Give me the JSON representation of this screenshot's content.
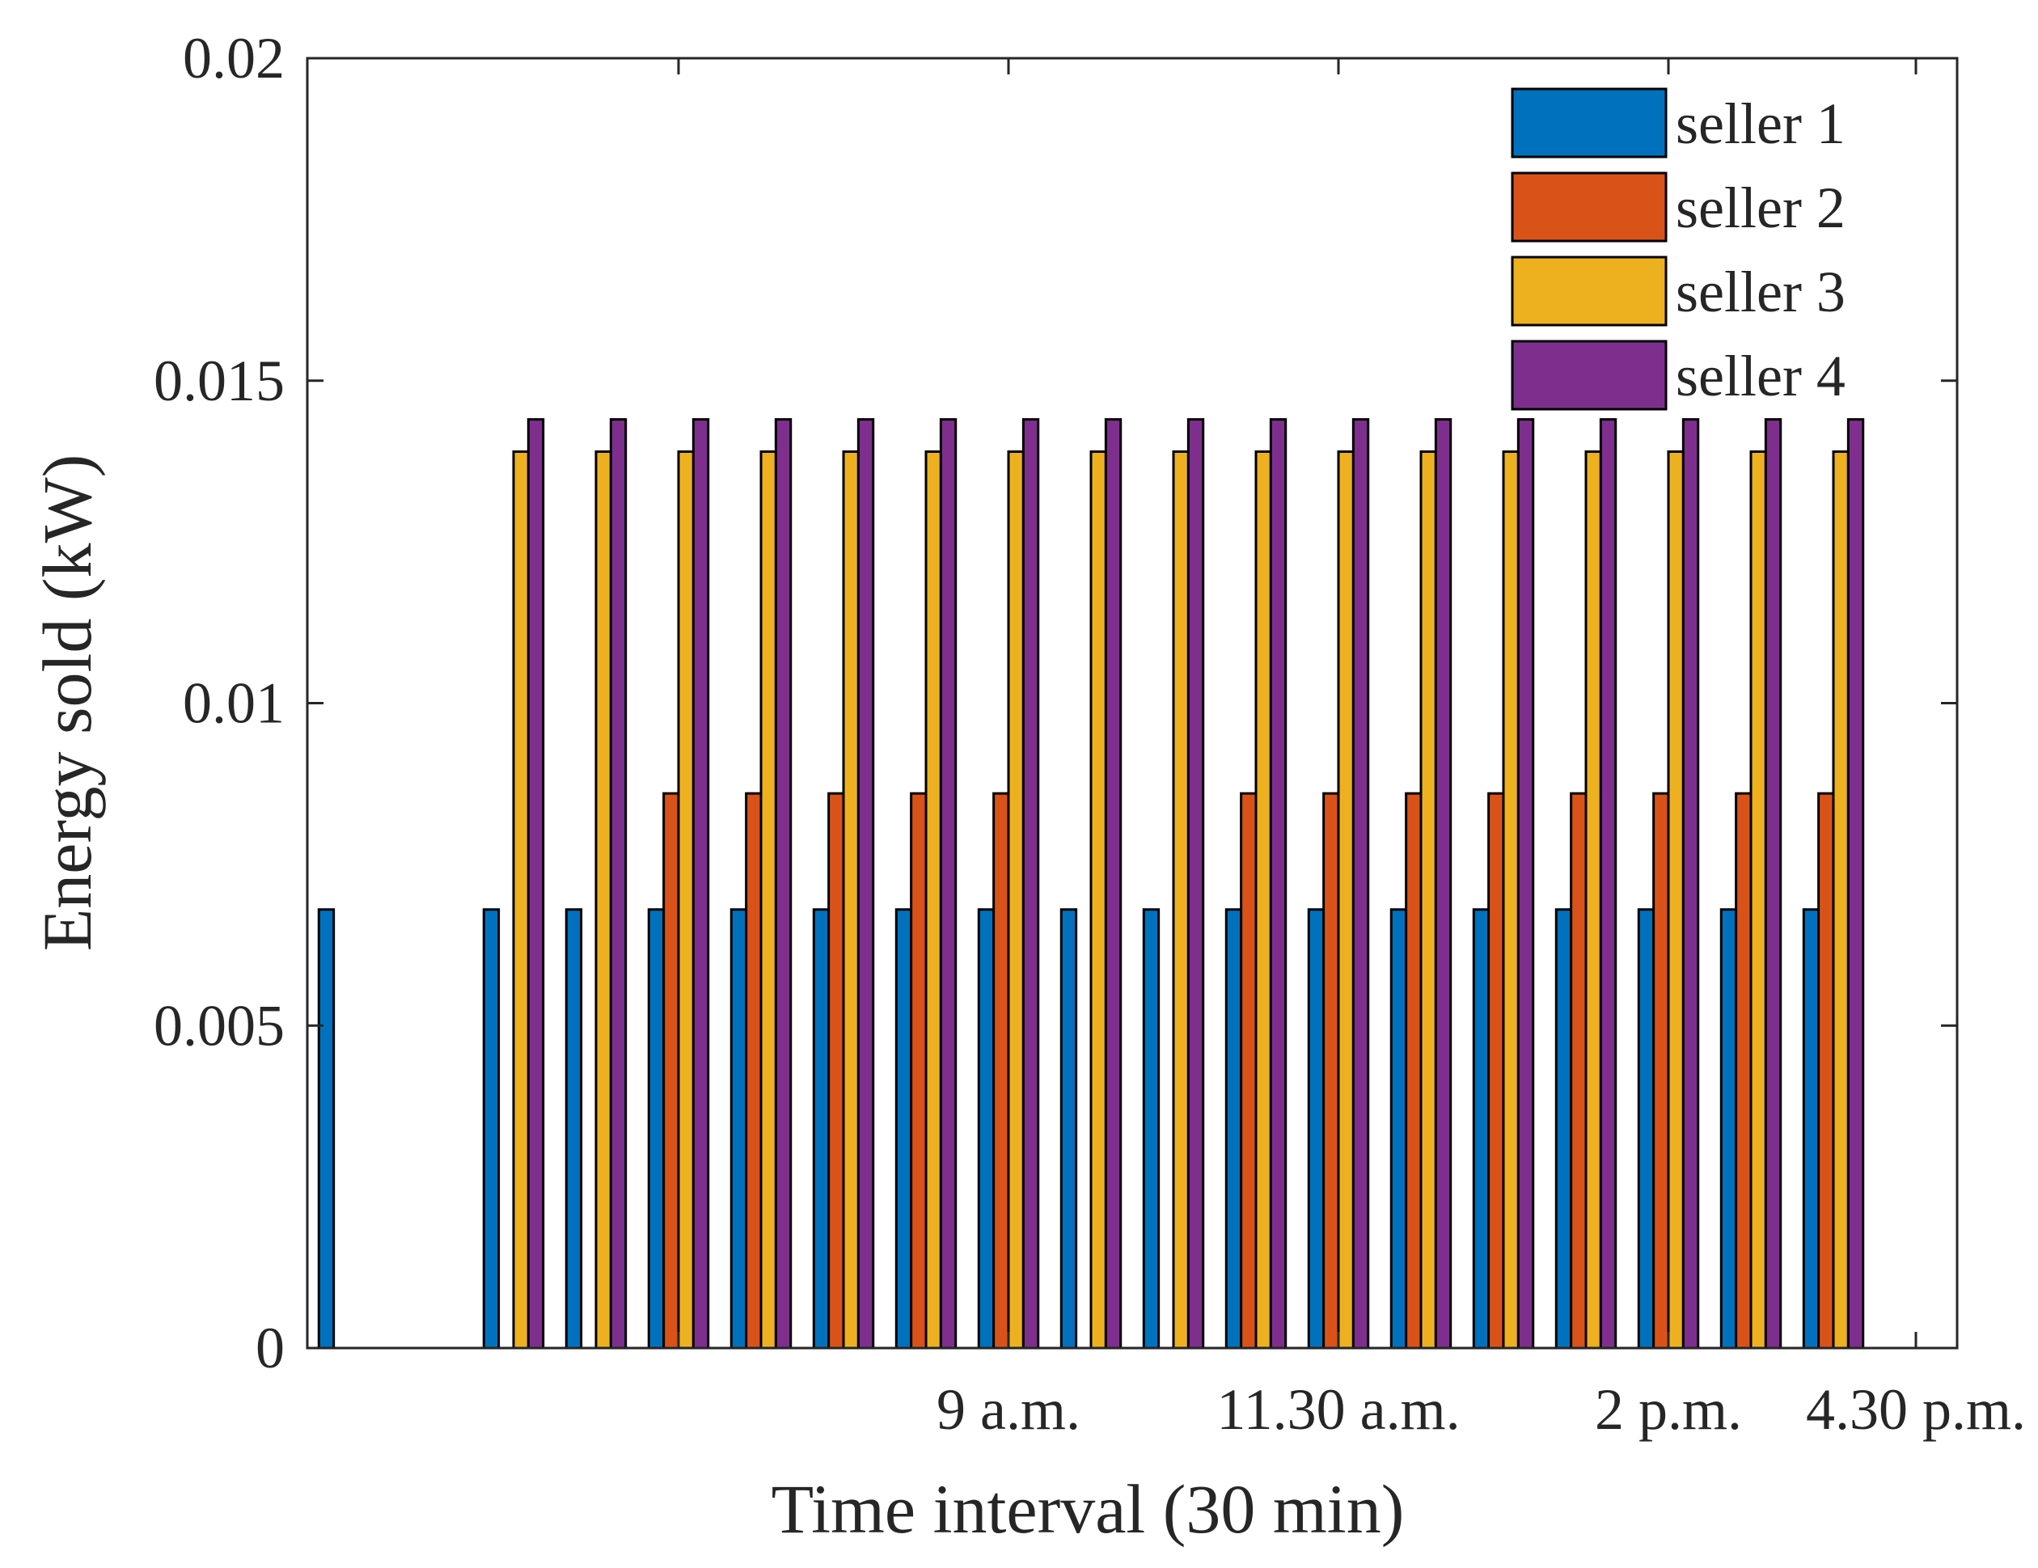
{
  "chart_data": {
    "type": "bar",
    "title": "",
    "xlabel": "Time interval (30 min)",
    "ylabel": "Energy sold (kW)",
    "ylim": [
      0,
      0.02
    ],
    "yticks": [
      0,
      0.005,
      0.01,
      0.015,
      0.02
    ],
    "ytick_labels": [
      "0",
      "0.005",
      "0.01",
      "0.015",
      "0.02"
    ],
    "xlim": [
      0.5,
      20.5
    ],
    "xticks": [
      5,
      9,
      13,
      17,
      20
    ],
    "xtick_labels": [
      "",
      "9 a.m.",
      "11.30 a.m.",
      "2 p.m.",
      "4.30 p.m."
    ],
    "categories": [
      1,
      2,
      3,
      4,
      5,
      6,
      7,
      8,
      9,
      10,
      11,
      12,
      13,
      14,
      15,
      16,
      17,
      18,
      19,
      20
    ],
    "series": [
      {
        "name": "seller 1",
        "color": "#0072BD",
        "values": [
          0.0068,
          0,
          0.0068,
          0.0068,
          0.0068,
          0.0068,
          0.0068,
          0.0068,
          0.0068,
          0.0068,
          0.0068,
          0.0068,
          0.0068,
          0.0068,
          0.0068,
          0.0068,
          0.0068,
          0.0068,
          0.0068,
          0
        ]
      },
      {
        "name": "seller 2",
        "color": "#D95319",
        "values": [
          0,
          0,
          0,
          0,
          0.0086,
          0.0086,
          0.0086,
          0.0086,
          0.0086,
          0,
          0,
          0.0086,
          0.0086,
          0.0086,
          0.0086,
          0.0086,
          0.0086,
          0.0086,
          0.0086,
          0
        ]
      },
      {
        "name": "seller 3",
        "color": "#EDB120",
        "values": [
          0,
          0,
          0.0139,
          0.0139,
          0.0139,
          0.0139,
          0.0139,
          0.0139,
          0.0139,
          0.0139,
          0.0139,
          0.0139,
          0.0139,
          0.0139,
          0.0139,
          0.0139,
          0.0139,
          0.0139,
          0.0139,
          0
        ]
      },
      {
        "name": "seller 4",
        "color": "#7E2F8E",
        "values": [
          0,
          0,
          0.0144,
          0.0144,
          0.0144,
          0.0144,
          0.0144,
          0.0144,
          0.0144,
          0.0144,
          0.0144,
          0.0144,
          0.0144,
          0.0144,
          0.0144,
          0.0144,
          0.0144,
          0.0144,
          0.0144,
          0
        ]
      }
    ],
    "legend_position": "top-right",
    "grid": false
  }
}
